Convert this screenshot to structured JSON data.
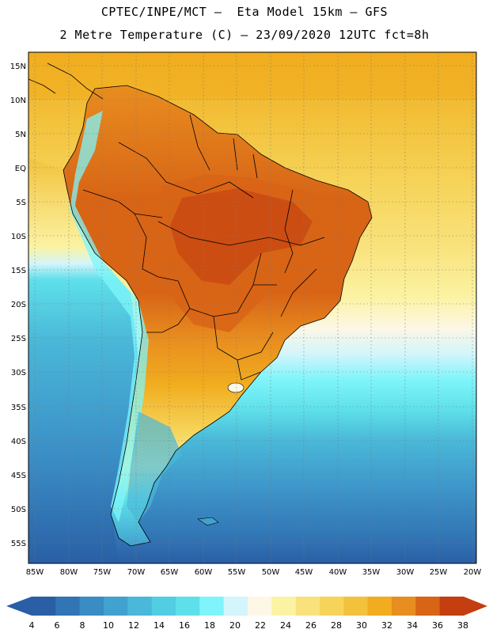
{
  "header": {
    "title_line1": "CPTEC/INPE/MCT –  Eta Model 15km – GFS",
    "title_line2": "2 Metre Temperature (C) – 23/09/2020 12UTC fct=8h"
  },
  "map": {
    "lat_labels": [
      "15N",
      "10N",
      "5N",
      "EQ",
      "5S",
      "10S",
      "15S",
      "20S",
      "25S",
      "30S",
      "35S",
      "40S",
      "45S",
      "50S",
      "55S"
    ],
    "lon_labels": [
      "85W",
      "80W",
      "75W",
      "70W",
      "65W",
      "60W",
      "55W",
      "50W",
      "45W",
      "40W",
      "35W",
      "30W",
      "25W",
      "20W"
    ]
  },
  "colorbar": {
    "labels": [
      "4",
      "6",
      "8",
      "10",
      "12",
      "14",
      "16",
      "18",
      "20",
      "22",
      "24",
      "26",
      "28",
      "30",
      "32",
      "34",
      "36",
      "38"
    ],
    "colors": [
      "#2a5fa5",
      "#3175b5",
      "#3a8cc4",
      "#42a2cf",
      "#4ab8d8",
      "#52cde2",
      "#5ee0ea",
      "#7ff5fb",
      "#d3f5fb",
      "#fdf7e6",
      "#fbf3a3",
      "#f9e27c",
      "#f6d45a",
      "#f3c23c",
      "#f1ad1f",
      "#e88d1f",
      "#d86416",
      "#c43e10"
    ],
    "low_color": "#2a5fa5",
    "high_color": "#c43e10"
  },
  "palette": {
    "land_north": "#e88d1f",
    "land_hot": "#d86416",
    "land_mid": "#f1ad1f",
    "ocean_warm": "#f6d45a",
    "ocean_cool": "#52cde2",
    "ocean_cold": "#3175b5",
    "border": "#000000"
  }
}
